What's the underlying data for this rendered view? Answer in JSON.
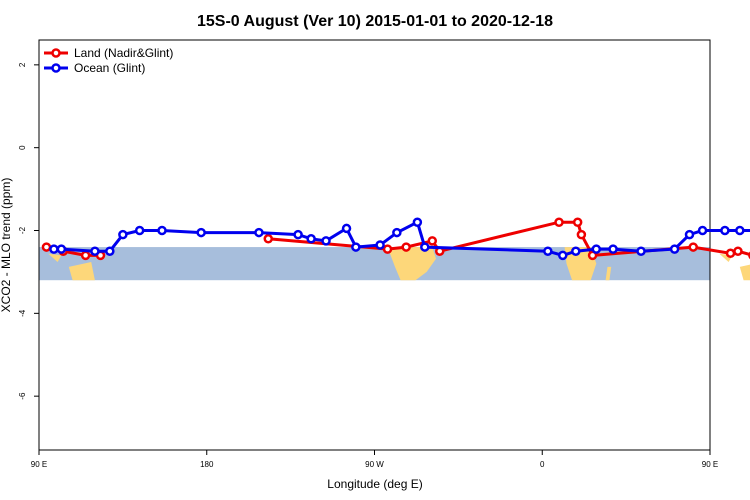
{
  "chart_data": {
    "type": "line",
    "title": "15S-0 August (Ver 10)   2015-01-01 to 2020-12-18",
    "xlabel": "Longitude (deg E)",
    "ylabel": "XCO2 - MLO trend (ppm)",
    "xlim": [
      90,
      450
    ],
    "ylim": [
      -7.3,
      2.6
    ],
    "x_ticks": [
      {
        "value": 90,
        "label": "90 E"
      },
      {
        "value": 180,
        "label": "180"
      },
      {
        "value": 270,
        "label": "90 W"
      },
      {
        "value": 360,
        "label": "0"
      },
      {
        "value": 450,
        "label": "90 E"
      },
      {
        "value": 540,
        "label": "180"
      }
    ],
    "y_ticks": [
      {
        "value": 2,
        "label": "2"
      },
      {
        "value": 0,
        "label": "0"
      },
      {
        "value": -2,
        "label": "-2"
      },
      {
        "value": -4,
        "label": "-4"
      },
      {
        "value": -6,
        "label": "-6"
      }
    ],
    "grid": false,
    "legend_position": "top-left",
    "map_band": {
      "y_top": -2.4,
      "y_bottom": -3.2,
      "ocean_color": "#a7bedc",
      "land_color": "#fdd77a"
    },
    "series": [
      {
        "name": "Land (Nadir&Glint)",
        "color": "#ee0000",
        "x": [
          94,
          103,
          115,
          123,
          213,
          277,
          287,
          301,
          305,
          369,
          379,
          381,
          387,
          441,
          461,
          465,
          473,
          477
        ],
        "y": [
          -2.4,
          -2.5,
          -2.6,
          -2.6,
          -2.2,
          -2.45,
          -2.4,
          -2.25,
          -2.5,
          -1.8,
          -1.8,
          -2.1,
          -2.6,
          -2.4,
          -2.55,
          -2.5,
          -2.6,
          -2.55
        ]
      },
      {
        "name": "Ocean (Glint)",
        "color": "#0000ee",
        "x": [
          98,
          102,
          120,
          128,
          135,
          144,
          156,
          177,
          208,
          229,
          236,
          244,
          255,
          260,
          273,
          282,
          293,
          297,
          363,
          371,
          378,
          389,
          398,
          413,
          431,
          439,
          446,
          458,
          466,
          478,
          500
        ],
        "y": [
          -2.45,
          -2.45,
          -2.5,
          -2.5,
          -2.1,
          -2.0,
          -2.0,
          -2.05,
          -2.05,
          -2.1,
          -2.2,
          -2.25,
          -1.95,
          -2.4,
          -2.35,
          -2.05,
          -1.8,
          -2.4,
          -2.5,
          -2.6,
          -2.5,
          -2.45,
          -2.45,
          -2.5,
          -2.45,
          -2.1,
          -2.0,
          -2.0,
          -2.0,
          -2.0,
          -2.0
        ]
      }
    ]
  }
}
